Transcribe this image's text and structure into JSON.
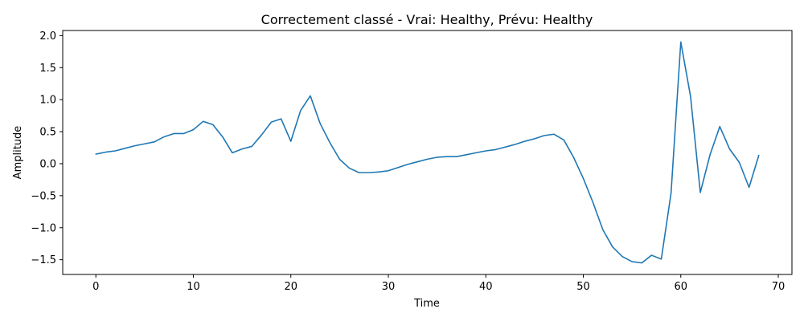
{
  "chart_data": {
    "type": "line",
    "title": "Correctement classé - Vrai: Healthy, Prévu: Healthy",
    "xlabel": "Time",
    "ylabel": "Amplitude",
    "xlim": [
      -3.4,
      71.4
    ],
    "ylim": [
      -1.73,
      2.08
    ],
    "grid": false,
    "x_ticks": [
      0,
      10,
      20,
      30,
      40,
      50,
      60,
      70
    ],
    "y_ticks": [
      -1.5,
      -1.0,
      -0.5,
      0.0,
      0.5,
      1.0,
      1.5,
      2.0
    ],
    "x_tick_labels": [
      "0",
      "10",
      "20",
      "30",
      "40",
      "50",
      "60",
      "70"
    ],
    "y_tick_labels": [
      "−1.5",
      "−1.0",
      "−0.5",
      "0.0",
      "0.5",
      "1.0",
      "1.5",
      "2.0"
    ],
    "series": [
      {
        "color": "#1f77b4",
        "x": [
          0,
          1,
          2,
          3,
          4,
          5,
          6,
          7,
          8,
          9,
          10,
          11,
          12,
          13,
          14,
          15,
          16,
          17,
          18,
          19,
          20,
          21,
          22,
          23,
          24,
          25,
          26,
          27,
          28,
          29,
          30,
          31,
          32,
          33,
          34,
          35,
          36,
          37,
          38,
          39,
          40,
          41,
          42,
          43,
          44,
          45,
          46,
          47,
          48,
          49,
          50,
          51,
          52,
          53,
          54,
          55,
          56,
          57,
          58,
          59,
          60,
          61,
          62,
          63,
          64,
          65,
          66,
          67,
          68
        ],
        "y": [
          0.15,
          0.18,
          0.2,
          0.24,
          0.28,
          0.31,
          0.34,
          0.42,
          0.47,
          0.47,
          0.53,
          0.66,
          0.61,
          0.42,
          0.17,
          0.23,
          0.27,
          0.45,
          0.65,
          0.7,
          0.35,
          0.83,
          1.06,
          0.63,
          0.33,
          0.07,
          -0.07,
          -0.14,
          -0.14,
          -0.13,
          -0.11,
          -0.06,
          -0.01,
          0.03,
          0.07,
          0.1,
          0.11,
          0.11,
          0.14,
          0.17,
          0.2,
          0.22,
          0.26,
          0.3,
          0.35,
          0.39,
          0.44,
          0.46,
          0.37,
          0.1,
          -0.23,
          -0.61,
          -1.03,
          -1.3,
          -1.45,
          -1.53,
          -1.55,
          -1.43,
          -1.49,
          -0.46,
          1.9,
          1.05,
          -0.45,
          0.14,
          0.58,
          0.23,
          0.02,
          -0.37,
          0.13
        ]
      }
    ]
  }
}
